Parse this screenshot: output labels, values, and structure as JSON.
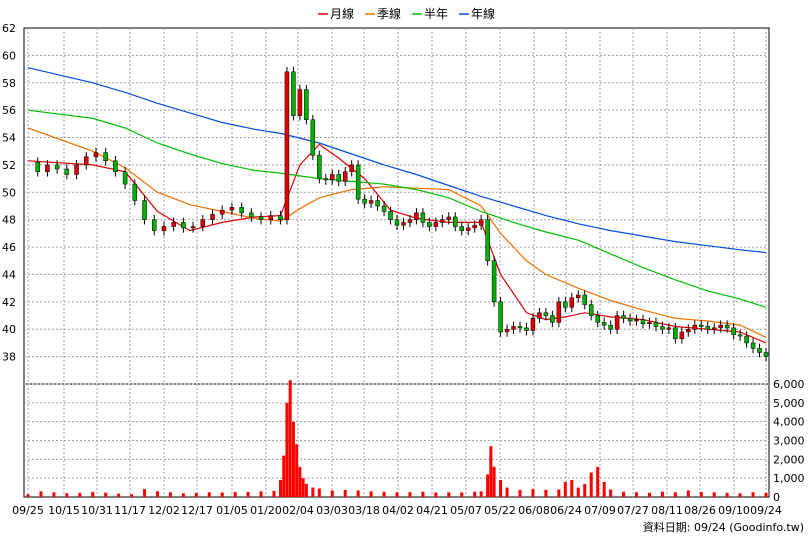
{
  "legend": [
    {
      "label": "月線",
      "color": "#e00000"
    },
    {
      "label": "季線",
      "color": "#f07000"
    },
    {
      "label": "半年",
      "color": "#00c000"
    },
    {
      "label": "年線",
      "color": "#0050e0"
    }
  ],
  "footer": "資料日期: 09/24  (Goodinfo.tw)",
  "chart_data": [
    {
      "type": "candlestick-with-moving-averages",
      "title": "",
      "xlabel": "",
      "ylabel": "",
      "ylim": [
        36,
        62
      ],
      "y_ticks": [
        38,
        40,
        42,
        44,
        46,
        48,
        50,
        52,
        54,
        56,
        58,
        60,
        62
      ],
      "x_ticks": [
        "09/25",
        "10/15",
        "10/31",
        "11/17",
        "12/02",
        "12/17",
        "01/05",
        "01/20",
        "02/04",
        "03/03",
        "03/18",
        "04/02",
        "04/21",
        "05/07",
        "05/22",
        "06/08",
        "06/24",
        "07/09",
        "07/27",
        "08/11",
        "08/26",
        "09/10",
        "09/24"
      ],
      "grid": true,
      "legend_position": "top-center",
      "up_color": "#e00000",
      "down_color": "#00b000",
      "close_approx": [
        [
          0,
          52.2
        ],
        [
          3,
          51.5
        ],
        [
          6,
          52.0
        ],
        [
          9,
          51.7
        ],
        [
          12,
          51.3
        ],
        [
          15,
          52.0
        ],
        [
          18,
          52.6
        ],
        [
          21,
          52.9
        ],
        [
          24,
          52.3
        ],
        [
          27,
          51.5
        ],
        [
          30,
          50.6
        ],
        [
          33,
          49.4
        ],
        [
          36,
          48.0
        ],
        [
          39,
          47.2
        ],
        [
          42,
          47.5
        ],
        [
          45,
          47.8
        ],
        [
          48,
          47.4
        ],
        [
          51,
          47.5
        ],
        [
          54,
          48.0
        ],
        [
          57,
          48.4
        ],
        [
          60,
          48.7
        ],
        [
          63,
          48.9
        ],
        [
          66,
          48.5
        ],
        [
          69,
          48.2
        ],
        [
          72,
          48.0
        ],
        [
          75,
          48.3
        ],
        [
          78,
          48.0
        ],
        [
          80,
          58.8
        ],
        [
          82,
          55.6
        ],
        [
          84,
          57.5
        ],
        [
          86,
          55.3
        ],
        [
          88,
          52.7
        ],
        [
          90,
          51.0
        ],
        [
          92,
          50.9
        ],
        [
          94,
          51.3
        ],
        [
          96,
          50.8
        ],
        [
          98,
          51.5
        ],
        [
          100,
          52.0
        ],
        [
          102,
          49.5
        ],
        [
          104,
          49.2
        ],
        [
          106,
          49.4
        ],
        [
          108,
          49.0
        ],
        [
          110,
          48.6
        ],
        [
          112,
          48.0
        ],
        [
          114,
          47.6
        ],
        [
          116,
          47.8
        ],
        [
          118,
          48.0
        ],
        [
          120,
          48.5
        ],
        [
          122,
          47.8
        ],
        [
          124,
          47.5
        ],
        [
          126,
          47.8
        ],
        [
          128,
          48.0
        ],
        [
          130,
          48.2
        ],
        [
          132,
          47.5
        ],
        [
          134,
          47.2
        ],
        [
          136,
          47.4
        ],
        [
          138,
          47.6
        ],
        [
          140,
          48.0
        ],
        [
          142,
          45.0
        ],
        [
          144,
          42.0
        ],
        [
          146,
          39.8
        ],
        [
          148,
          40.0
        ],
        [
          150,
          40.2
        ],
        [
          152,
          40.1
        ],
        [
          154,
          39.9
        ],
        [
          156,
          40.8
        ],
        [
          158,
          41.2
        ],
        [
          160,
          41.0
        ],
        [
          162,
          40.5
        ],
        [
          164,
          42.0
        ],
        [
          166,
          41.6
        ],
        [
          168,
          42.3
        ],
        [
          170,
          42.5
        ],
        [
          172,
          41.8
        ],
        [
          174,
          41.0
        ],
        [
          176,
          40.5
        ],
        [
          178,
          40.3
        ],
        [
          180,
          40.0
        ],
        [
          182,
          41.0
        ],
        [
          184,
          40.8
        ],
        [
          186,
          40.6
        ],
        [
          188,
          40.7
        ],
        [
          190,
          40.4
        ],
        [
          192,
          40.5
        ],
        [
          194,
          40.2
        ],
        [
          196,
          40.0
        ],
        [
          198,
          40.1
        ],
        [
          200,
          39.3
        ],
        [
          202,
          39.8
        ],
        [
          204,
          40.0
        ],
        [
          206,
          40.3
        ],
        [
          208,
          40.2
        ],
        [
          210,
          40.0
        ],
        [
          212,
          40.1
        ],
        [
          214,
          40.3
        ],
        [
          216,
          40.1
        ],
        [
          218,
          39.6
        ],
        [
          220,
          39.5
        ],
        [
          222,
          39.0
        ],
        [
          224,
          38.6
        ],
        [
          226,
          38.3
        ],
        [
          228,
          38.0
        ]
      ],
      "series": [
        {
          "name": "月線",
          "values": [
            [
              0,
              52.3
            ],
            [
              20,
              52.0
            ],
            [
              30,
              51.5
            ],
            [
              40,
              48.6
            ],
            [
              50,
              47.2
            ],
            [
              60,
              47.8
            ],
            [
              70,
              48.2
            ],
            [
              78,
              48.3
            ],
            [
              84,
              52.0
            ],
            [
              90,
              53.5
            ],
            [
              96,
              52.5
            ],
            [
              104,
              51.0
            ],
            [
              112,
              48.7
            ],
            [
              120,
              48.1
            ],
            [
              130,
              47.8
            ],
            [
              140,
              47.8
            ],
            [
              146,
              44.0
            ],
            [
              154,
              41.2
            ],
            [
              160,
              40.7
            ],
            [
              166,
              40.9
            ],
            [
              172,
              41.2
            ],
            [
              180,
              40.9
            ],
            [
              190,
              40.7
            ],
            [
              200,
              40.2
            ],
            [
              210,
              40.0
            ],
            [
              220,
              39.8
            ],
            [
              228,
              39.0
            ]
          ]
        },
        {
          "name": "季線",
          "values": [
            [
              0,
              54.7
            ],
            [
              20,
              53.0
            ],
            [
              30,
              51.8
            ],
            [
              40,
              50.0
            ],
            [
              50,
              49.1
            ],
            [
              60,
              48.6
            ],
            [
              70,
              48.1
            ],
            [
              78,
              47.9
            ],
            [
              84,
              48.8
            ],
            [
              90,
              49.6
            ],
            [
              100,
              50.2
            ],
            [
              110,
              50.4
            ],
            [
              120,
              50.3
            ],
            [
              130,
              50.2
            ],
            [
              140,
              49.0
            ],
            [
              146,
              47.0
            ],
            [
              154,
              45.0
            ],
            [
              160,
              44.0
            ],
            [
              170,
              43.0
            ],
            [
              180,
              42.1
            ],
            [
              190,
              41.4
            ],
            [
              200,
              40.8
            ],
            [
              210,
              40.6
            ],
            [
              220,
              40.3
            ],
            [
              228,
              39.4
            ]
          ]
        },
        {
          "name": "半年",
          "values": [
            [
              0,
              56.0
            ],
            [
              20,
              55.4
            ],
            [
              30,
              54.7
            ],
            [
              40,
              53.6
            ],
            [
              50,
              52.8
            ],
            [
              60,
              52.1
            ],
            [
              70,
              51.6
            ],
            [
              78,
              51.4
            ],
            [
              90,
              51.0
            ],
            [
              100,
              50.8
            ],
            [
              110,
              50.6
            ],
            [
              120,
              50.2
            ],
            [
              130,
              49.6
            ],
            [
              140,
              48.6
            ],
            [
              150,
              47.8
            ],
            [
              160,
              47.1
            ],
            [
              170,
              46.5
            ],
            [
              180,
              45.5
            ],
            [
              190,
              44.5
            ],
            [
              200,
              43.6
            ],
            [
              210,
              42.8
            ],
            [
              220,
              42.2
            ],
            [
              228,
              41.6
            ]
          ]
        },
        {
          "name": "年線",
          "values": [
            [
              0,
              59.1
            ],
            [
              20,
              58.0
            ],
            [
              30,
              57.3
            ],
            [
              40,
              56.5
            ],
            [
              50,
              55.8
            ],
            [
              60,
              55.1
            ],
            [
              70,
              54.6
            ],
            [
              78,
              54.3
            ],
            [
              90,
              53.6
            ],
            [
              100,
              52.8
            ],
            [
              110,
              52.0
            ],
            [
              120,
              51.3
            ],
            [
              130,
              50.5
            ],
            [
              140,
              49.7
            ],
            [
              150,
              49.0
            ],
            [
              160,
              48.3
            ],
            [
              170,
              47.7
            ],
            [
              180,
              47.2
            ],
            [
              190,
              46.8
            ],
            [
              200,
              46.4
            ],
            [
              210,
              46.1
            ],
            [
              220,
              45.8
            ],
            [
              228,
              45.6
            ]
          ]
        }
      ]
    },
    {
      "type": "bar",
      "title": "",
      "ylim": [
        0,
        6000
      ],
      "y_ticks": [
        "0",
        "1,000",
        "2,000",
        "3,000",
        "4,000",
        "5,000",
        "6,000"
      ],
      "bar_color": "#ff0000",
      "values_approx": [
        [
          0,
          150
        ],
        [
          4,
          300
        ],
        [
          8,
          250
        ],
        [
          12,
          200
        ],
        [
          16,
          220
        ],
        [
          20,
          260
        ],
        [
          24,
          230
        ],
        [
          28,
          180
        ],
        [
          32,
          150
        ],
        [
          36,
          420
        ],
        [
          40,
          300
        ],
        [
          44,
          250
        ],
        [
          48,
          200
        ],
        [
          52,
          220
        ],
        [
          56,
          250
        ],
        [
          60,
          240
        ],
        [
          64,
          260
        ],
        [
          68,
          270
        ],
        [
          72,
          300
        ],
        [
          76,
          320
        ],
        [
          78,
          900
        ],
        [
          79,
          2200
        ],
        [
          80,
          5000
        ],
        [
          81,
          6200
        ],
        [
          82,
          4000
        ],
        [
          83,
          2800
        ],
        [
          84,
          1600
        ],
        [
          85,
          1000
        ],
        [
          86,
          700
        ],
        [
          88,
          500
        ],
        [
          90,
          450
        ],
        [
          94,
          350
        ],
        [
          98,
          380
        ],
        [
          102,
          350
        ],
        [
          106,
          300
        ],
        [
          110,
          280
        ],
        [
          114,
          250
        ],
        [
          118,
          260
        ],
        [
          122,
          280
        ],
        [
          126,
          240
        ],
        [
          130,
          250
        ],
        [
          134,
          240
        ],
        [
          138,
          280
        ],
        [
          140,
          300
        ],
        [
          142,
          1200
        ],
        [
          143,
          2700
        ],
        [
          144,
          1600
        ],
        [
          146,
          900
        ],
        [
          148,
          500
        ],
        [
          152,
          380
        ],
        [
          156,
          420
        ],
        [
          160,
          380
        ],
        [
          164,
          400
        ],
        [
          166,
          800
        ],
        [
          168,
          900
        ],
        [
          170,
          500
        ],
        [
          172,
          700
        ],
        [
          174,
          1300
        ],
        [
          176,
          1600
        ],
        [
          178,
          800
        ],
        [
          180,
          400
        ],
        [
          184,
          280
        ],
        [
          188,
          250
        ],
        [
          192,
          220
        ],
        [
          196,
          280
        ],
        [
          200,
          250
        ],
        [
          204,
          350
        ],
        [
          208,
          260
        ],
        [
          212,
          250
        ],
        [
          216,
          220
        ],
        [
          220,
          200
        ],
        [
          224,
          250
        ],
        [
          228,
          220
        ]
      ]
    }
  ]
}
